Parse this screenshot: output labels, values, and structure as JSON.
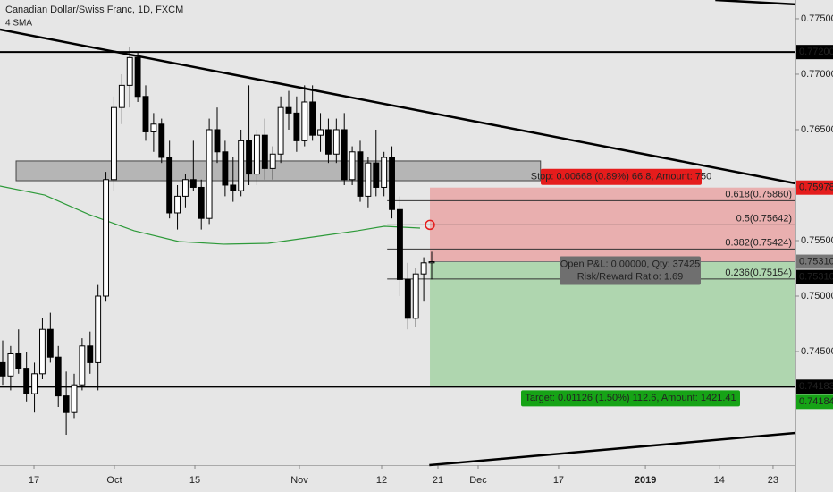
{
  "chart_data": {
    "type": "candlestick",
    "title": "Canadian Dollar/Swiss Franc, 1D, FXCM",
    "subtitle": "4 SMA",
    "up_color": "#ffffff",
    "down_color": "#000000",
    "ylim": [
      0.73476,
      0.77669
    ],
    "xlim": [
      -0.3375,
      99.79
    ],
    "yticks": [
      {
        "value": 0.775,
        "label": "0.77500"
      },
      {
        "value": 0.77,
        "label": "0.77000"
      },
      {
        "value": 0.765,
        "label": "0.76500"
      },
      {
        "value": 0.755,
        "label": "0.75500"
      },
      {
        "value": 0.75,
        "label": "0.75000"
      },
      {
        "value": 0.745,
        "label": "0.74500"
      }
    ],
    "xticks": [
      {
        "value": 3.94,
        "label": "17"
      },
      {
        "value": 14.06,
        "label": "Oct"
      },
      {
        "value": 24.19,
        "label": "15"
      },
      {
        "value": 37.35,
        "label": "Nov"
      },
      {
        "value": 47.7,
        "label": "12"
      },
      {
        "value": 54.79,
        "label": "21"
      },
      {
        "value": 59.85,
        "label": "Dec"
      },
      {
        "value": 69.97,
        "label": "17"
      },
      {
        "value": 80.9,
        "label": "2019"
      },
      {
        "value": 90.2,
        "label": "14"
      },
      {
        "value": 96.97,
        "label": "23"
      }
    ],
    "ohlc": [
      [
        0.744,
        0.746,
        0.742,
        0.7428
      ],
      [
        0.7428,
        0.7455,
        0.7415,
        0.7448
      ],
      [
        0.7448,
        0.747,
        0.743,
        0.7435
      ],
      [
        0.7435,
        0.745,
        0.7405,
        0.7412
      ],
      [
        0.7412,
        0.744,
        0.7395,
        0.743
      ],
      [
        0.743,
        0.748,
        0.7425,
        0.747
      ],
      [
        0.747,
        0.7485,
        0.744,
        0.7445
      ],
      [
        0.7445,
        0.7455,
        0.74,
        0.741
      ],
      [
        0.741,
        0.7432,
        0.7375,
        0.7395
      ],
      [
        0.7395,
        0.743,
        0.739,
        0.742
      ],
      [
        0.742,
        0.7462,
        0.7415,
        0.7455
      ],
      [
        0.7455,
        0.7468,
        0.743,
        0.744
      ],
      [
        0.744,
        0.751,
        0.7415,
        0.75
      ],
      [
        0.75,
        0.7612,
        0.7495,
        0.7605
      ],
      [
        0.7605,
        0.768,
        0.7595,
        0.767
      ],
      [
        0.767,
        0.77,
        0.7655,
        0.769
      ],
      [
        0.769,
        0.7725,
        0.767,
        0.7715
      ],
      [
        0.7715,
        0.772,
        0.7675,
        0.768
      ],
      [
        0.768,
        0.769,
        0.764,
        0.7648
      ],
      [
        0.7648,
        0.7665,
        0.763,
        0.7655
      ],
      [
        0.7655,
        0.766,
        0.762,
        0.7625
      ],
      [
        0.7625,
        0.764,
        0.757,
        0.7575
      ],
      [
        0.7575,
        0.76,
        0.756,
        0.759
      ],
      [
        0.759,
        0.761,
        0.758,
        0.7605
      ],
      [
        0.7605,
        0.764,
        0.7595,
        0.7598
      ],
      [
        0.7598,
        0.7605,
        0.756,
        0.757
      ],
      [
        0.757,
        0.766,
        0.7565,
        0.765
      ],
      [
        0.765,
        0.767,
        0.762,
        0.763
      ],
      [
        0.763,
        0.764,
        0.759,
        0.76
      ],
      [
        0.76,
        0.7625,
        0.7585,
        0.7595
      ],
      [
        0.7595,
        0.765,
        0.759,
        0.764
      ],
      [
        0.764,
        0.769,
        0.76,
        0.761
      ],
      [
        0.761,
        0.765,
        0.76,
        0.7645
      ],
      [
        0.7645,
        0.766,
        0.7605,
        0.7615
      ],
      [
        0.7615,
        0.7635,
        0.7605,
        0.7628
      ],
      [
        0.7628,
        0.768,
        0.762,
        0.767
      ],
      [
        0.767,
        0.7685,
        0.765,
        0.7665
      ],
      [
        0.7665,
        0.768,
        0.763,
        0.764
      ],
      [
        0.764,
        0.769,
        0.7635,
        0.7675
      ],
      [
        0.7675,
        0.769,
        0.764,
        0.7645
      ],
      [
        0.7645,
        0.7665,
        0.763,
        0.765
      ],
      [
        0.765,
        0.766,
        0.762,
        0.7628
      ],
      [
        0.7628,
        0.766,
        0.762,
        0.765
      ],
      [
        0.765,
        0.7665,
        0.76,
        0.7605
      ],
      [
        0.7605,
        0.7635,
        0.76,
        0.763
      ],
      [
        0.763,
        0.764,
        0.7585,
        0.759
      ],
      [
        0.759,
        0.7625,
        0.758,
        0.762
      ],
      [
        0.762,
        0.765,
        0.759,
        0.7598
      ],
      [
        0.7598,
        0.763,
        0.759,
        0.7625
      ],
      [
        0.7625,
        0.7635,
        0.757,
        0.7578
      ],
      [
        0.7578,
        0.759,
        0.75,
        0.7515
      ],
      [
        0.7515,
        0.753,
        0.747,
        0.748
      ],
      [
        0.748,
        0.7525,
        0.7472,
        0.752
      ],
      [
        0.752,
        0.7535,
        0.7495,
        0.753
      ],
      [
        0.753,
        0.754,
        0.7515,
        0.7531
      ]
    ],
    "sma": {
      "color": "#2e9a3a",
      "x": [
        -0.34,
        5.29,
        10.91,
        16.54,
        22.16,
        27.79,
        33.41,
        39.04,
        44.66,
        48.04,
        52.54
      ],
      "values": [
        0.75992,
        0.75911,
        0.75734,
        0.75589,
        0.75492,
        0.75468,
        0.75476,
        0.75532,
        0.75589,
        0.75629,
        0.75613
      ]
    },
    "trendlines": [
      {
        "x": [
          -0.34,
          99.79
        ],
        "y": [
          0.77403,
          0.76016
        ]
      },
      {
        "x": [
          89.7,
          99.79
        ],
        "y": [
          0.77669,
          0.7763
        ]
      },
      {
        "x": [
          53.7,
          99.79
        ],
        "y": [
          0.73476,
          0.73766
        ]
      }
    ],
    "horizontal_lines": [
      0.772,
      0.74183
    ],
    "zone": {
      "x": [
        1.69,
        67.7
      ],
      "y": [
        0.76218,
        0.7604
      ]
    },
    "position": {
      "x": [
        53.78,
        99.79
      ],
      "stop": 0.75978,
      "entry": 0.7531,
      "target": 0.74183,
      "stop_label": "Stop: 0.00668 (0.89%) 66.8, Amount: 750",
      "pnl_label": "Open P&L: 0.00000, Qty: 37425",
      "ratio_label": "Risk/Reward Ratio: 1.69",
      "target_label": "Target: 0.01126 (1.50%) 112.6, Amount: 1421.41"
    },
    "fib": {
      "x": [
        48.4,
        99.79
      ],
      "levels": [
        {
          "value": 0.7586,
          "label": "0.618(0.75860)"
        },
        {
          "value": 0.75642,
          "label": "0.5(0.75642)"
        },
        {
          "value": 0.75424,
          "label": "0.382(0.75424)"
        },
        {
          "value": 0.75154,
          "label": "0.236(0.75154)"
        }
      ]
    },
    "price_tags": [
      {
        "value": 0.772,
        "label": "0.77200",
        "color": "#000000"
      },
      {
        "value": 0.75978,
        "label": "0.75978",
        "color": "#e51c1c"
      },
      {
        "value": 0.7531,
        "label": "0.75310",
        "color": "#777777"
      },
      {
        "value": 0.7531,
        "label": "0.75310",
        "color": "#000000"
      },
      {
        "value": 0.74183,
        "label": "0.74183",
        "color": "#000000"
      },
      {
        "value": 0.74184,
        "label": "0.74184",
        "color": "#16a316"
      }
    ]
  }
}
